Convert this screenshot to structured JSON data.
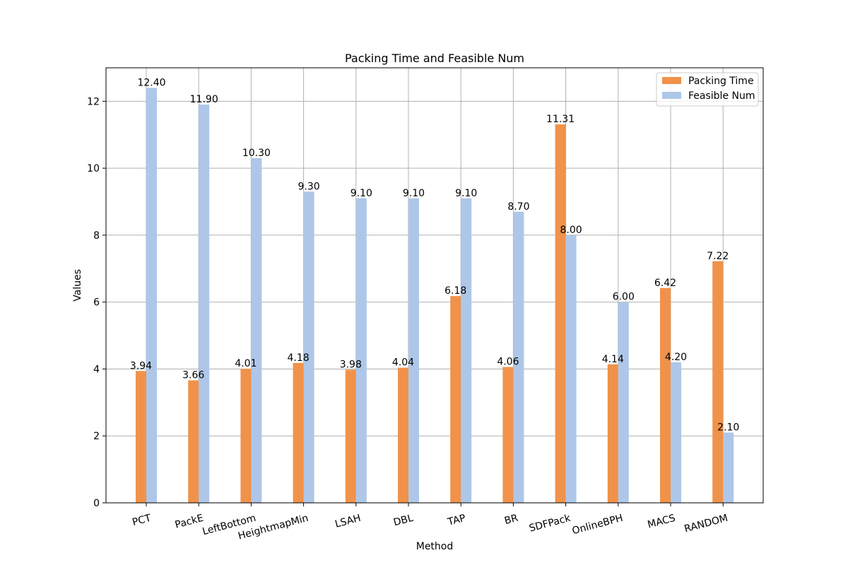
{
  "chart_data": {
    "type": "bar",
    "title": "Packing Time and Feasible Num",
    "xlabel": "Method",
    "ylabel": "Values",
    "ylim": [
      0,
      13
    ],
    "yticks": [
      0,
      2,
      4,
      6,
      8,
      10,
      12
    ],
    "grid": true,
    "legend_position": "top-right",
    "categories": [
      "PCT",
      "PackE",
      "LeftBottom",
      "HeightmapMin",
      "LSAH",
      "DBL",
      "TAP",
      "BR",
      "SDFPack",
      "OnlineBPH",
      "MACS",
      "RANDOM"
    ],
    "series": [
      {
        "name": "Packing Time",
        "color": "#f0924a",
        "values": [
          3.94,
          3.66,
          4.01,
          4.18,
          3.98,
          4.04,
          6.18,
          4.06,
          11.31,
          4.14,
          6.42,
          7.22
        ],
        "labels": [
          "3.94",
          "3.66",
          "4.01",
          "4.18",
          "3.98",
          "4.04",
          "6.18",
          "4.06",
          "11.31",
          "4.14",
          "6.42",
          "7.22"
        ]
      },
      {
        "name": "Feasible Num",
        "color": "#aec7e8",
        "values": [
          12.4,
          11.9,
          10.3,
          9.3,
          9.1,
          9.1,
          9.1,
          8.7,
          8.0,
          6.0,
          4.2,
          2.1
        ],
        "labels": [
          "12.40",
          "11.90",
          "10.30",
          "9.30",
          "9.10",
          "9.10",
          "9.10",
          "8.70",
          "8.00",
          "6.00",
          "4.20",
          "2.10"
        ]
      }
    ]
  }
}
